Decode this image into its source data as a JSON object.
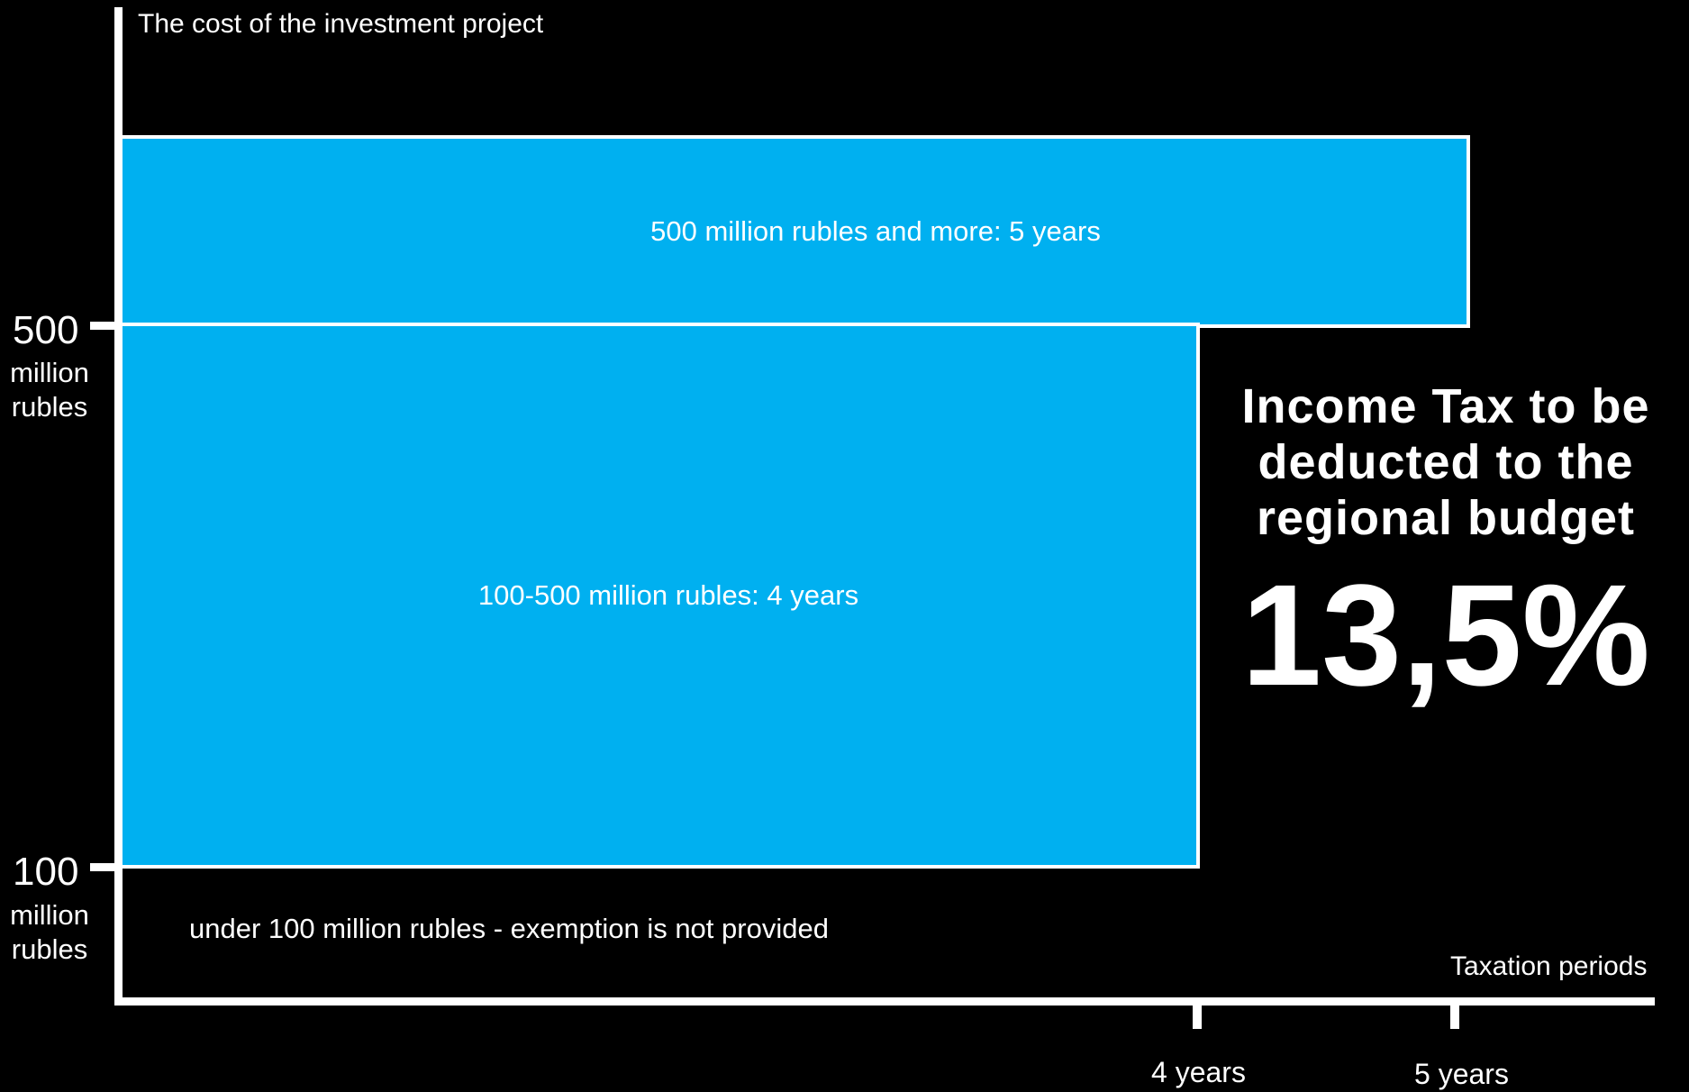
{
  "diagram": {
    "y_axis_title": "The cost of the investment project",
    "x_axis_title": "Taxation periods",
    "y_ticks": [
      {
        "value": "500",
        "unit": "million\nrubles"
      },
      {
        "value": "100",
        "unit": "million\nrubles"
      }
    ],
    "x_ticks": [
      "4 years",
      "5 years"
    ],
    "bands": [
      {
        "label": "500 million rubles and more: 5 years"
      },
      {
        "label": "100-500 million rubles: 4 years"
      }
    ],
    "below_threshold_note": "under 100 million rubles - exemption is not provided",
    "colors": {
      "band_fill": "#00b0f0",
      "background": "#000000",
      "lines": "#ffffff"
    }
  },
  "callout": {
    "headline": "Income Tax to be deducted to the regional budget",
    "rate": "13,5%"
  }
}
